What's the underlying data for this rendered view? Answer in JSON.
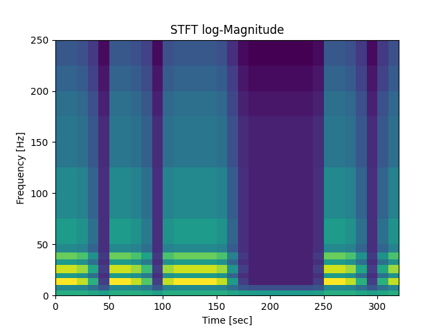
{
  "chart_data": {
    "type": "heatmap",
    "title": "STFT log-Magnitude",
    "x_label": "Time [sec]",
    "y_label": "Frequency [Hz]",
    "xlim": [
      0,
      320
    ],
    "ylim": [
      0,
      250
    ],
    "xticks": [
      0,
      50,
      100,
      150,
      200,
      250,
      300
    ],
    "yticks": [
      0,
      50,
      100,
      150,
      200,
      250
    ],
    "grid": false,
    "x_edges": [
      0,
      10,
      20,
      30,
      40,
      50,
      60,
      70,
      80,
      90,
      100,
      110,
      120,
      130,
      140,
      150,
      160,
      170,
      180,
      190,
      200,
      210,
      220,
      230,
      240,
      250,
      260,
      270,
      280,
      290,
      300,
      310,
      320
    ],
    "y_edges": [
      0,
      5,
      10,
      17,
      22,
      30,
      35,
      42,
      50,
      75,
      100,
      125,
      150,
      175,
      200,
      225,
      250
    ],
    "cells": [
      [
        6.5,
        6.5,
        6.5,
        6.3,
        6.1,
        6.5,
        6.5,
        6.5,
        6.4,
        6.1,
        6.5,
        6.5,
        6.5,
        6.5,
        6.5,
        6.5,
        6.3,
        6.1,
        6,
        6,
        6,
        6,
        6,
        6,
        6.1,
        6.5,
        6.5,
        6.5,
        6.3,
        6.1,
        6.3,
        6.5
      ],
      [
        5.5,
        5.5,
        5.4,
        4.9,
        4.2,
        5.5,
        5.5,
        5.4,
        5.1,
        4.2,
        5.4,
        5.5,
        5.5,
        5.5,
        5.5,
        5.4,
        4.8,
        4.2,
        4,
        4,
        4,
        4,
        4,
        4,
        4.2,
        5.5,
        5.5,
        5.4,
        4.9,
        4.2,
        4.9,
        5.4
      ],
      [
        9,
        9,
        8.4,
        6.6,
        3.6,
        9,
        9,
        8.4,
        7.2,
        3.6,
        8.4,
        9,
        9,
        9,
        9,
        8.4,
        6,
        3.6,
        3,
        3,
        3,
        3,
        3,
        3,
        3.6,
        9,
        9,
        8.4,
        6.6,
        3.6,
        6.6,
        8.4
      ],
      [
        6,
        6,
        5.7,
        4.8,
        3.3,
        6,
        6,
        5.7,
        5.1,
        3.3,
        5.7,
        6,
        6,
        6,
        6,
        5.7,
        4.5,
        3.3,
        3,
        3,
        3,
        3,
        3,
        3,
        3.3,
        6,
        6,
        5.7,
        4.8,
        3.3,
        4.8,
        5.7
      ],
      [
        8.5,
        8.5,
        8,
        6.3,
        3.6,
        8.5,
        8.5,
        8,
        6.9,
        3.6,
        8,
        8.5,
        8.5,
        8.5,
        8.5,
        8,
        5.8,
        3.6,
        3,
        3,
        3,
        3,
        3,
        3,
        3.6,
        8.5,
        8.5,
        8,
        6.3,
        3.6,
        6.3,
        8
      ],
      [
        6,
        6,
        5.7,
        4.8,
        3.3,
        6,
        6,
        5.7,
        5.1,
        3.3,
        5.7,
        6,
        6,
        6,
        6,
        5.7,
        4.5,
        3.3,
        3,
        3,
        3,
        3,
        3,
        3,
        3.3,
        6,
        6,
        5.7,
        4.8,
        3.3,
        4.8,
        5.7
      ],
      [
        7.5,
        7.5,
        7.1,
        5.7,
        3.5,
        7.5,
        7.5,
        7.1,
        6.2,
        3.5,
        7.1,
        7.5,
        7.5,
        7.5,
        7.5,
        7.1,
        5.3,
        3.5,
        3,
        3,
        3,
        3,
        3,
        3,
        3.5,
        7.5,
        7.5,
        7.1,
        5.7,
        3.5,
        5.7,
        7.1
      ],
      [
        5.5,
        5.5,
        5.3,
        4.5,
        3.3,
        5.5,
        5.5,
        5.3,
        4.8,
        3.3,
        5.3,
        5.5,
        5.5,
        5.5,
        5.5,
        5.3,
        4.3,
        3.3,
        3,
        3,
        3,
        3,
        3,
        3,
        3.3,
        5.5,
        5.5,
        5.3,
        4.5,
        3.3,
        4.5,
        5.3
      ],
      [
        6,
        6,
        5.7,
        4.8,
        3.3,
        6,
        6,
        5.7,
        5.1,
        3.3,
        5.7,
        6,
        6,
        6,
        6,
        5.7,
        4.5,
        3.3,
        3,
        3,
        3,
        3,
        3,
        3,
        3.3,
        6,
        6,
        5.7,
        4.8,
        3.3,
        4.8,
        5.7
      ],
      [
        5.5,
        5.5,
        5.3,
        4.5,
        3.3,
        5.5,
        5.5,
        5.3,
        4.8,
        3.3,
        5.3,
        5.5,
        5.5,
        5.5,
        5.5,
        5.3,
        4.3,
        3.3,
        3,
        3,
        3,
        3,
        3,
        3,
        3.3,
        5.5,
        5.5,
        5.3,
        4.5,
        3.3,
        4.5,
        5.3
      ],
      [
        5.5,
        5.5,
        5.3,
        4.5,
        3.3,
        5.5,
        5.5,
        5.3,
        4.8,
        3.3,
        5.3,
        5.5,
        5.5,
        5.5,
        5.5,
        5.3,
        4.3,
        3.3,
        3,
        3,
        3,
        3,
        3,
        3,
        3.3,
        5.5,
        5.5,
        5.3,
        4.5,
        3.3,
        4.5,
        5.3
      ],
      [
        5,
        5,
        4.8,
        4.2,
        3.2,
        5,
        5,
        4.8,
        4.4,
        3.2,
        4.8,
        5,
        5,
        5,
        5,
        4.8,
        4,
        3.2,
        3,
        3,
        3,
        3,
        3,
        3,
        3.2,
        5,
        5,
        4.8,
        4.2,
        3.2,
        4.2,
        4.8
      ],
      [
        5,
        5,
        4.8,
        4.2,
        3.2,
        5,
        5,
        4.8,
        4.4,
        3.2,
        4.8,
        5,
        5,
        5,
        5,
        4.8,
        4,
        3.2,
        3,
        3,
        3,
        3,
        3,
        3,
        3.2,
        5,
        5,
        4.8,
        4.2,
        3.2,
        4.2,
        4.8
      ],
      [
        4.8,
        4.8,
        4.6,
        4,
        3,
        4.8,
        4.8,
        4.6,
        4.2,
        3,
        4.6,
        4.8,
        4.8,
        4.8,
        4.8,
        4.6,
        3.8,
        3,
        2.8,
        2.8,
        2.8,
        2.8,
        2.8,
        2.8,
        3,
        4.8,
        4.8,
        4.6,
        4,
        3,
        4,
        4.6
      ],
      [
        4.5,
        4.5,
        4.3,
        3.7,
        2.8,
        4.5,
        4.5,
        4.3,
        3.9,
        2.8,
        4.3,
        4.5,
        4.5,
        4.5,
        4.5,
        4.3,
        3.6,
        2.8,
        2.6,
        2.6,
        2.6,
        2.6,
        2.6,
        2.6,
        2.8,
        4.5,
        4.5,
        4.3,
        3.7,
        2.8,
        3.7,
        4.3
      ],
      [
        4.2,
        4.2,
        4,
        3.5,
        2.6,
        4.2,
        4.2,
        4,
        3.7,
        2.6,
        4,
        4.2,
        4.2,
        4.2,
        4.2,
        4,
        3.3,
        2.6,
        2.4,
        2.4,
        2.4,
        2.4,
        2.4,
        2.4,
        2.6,
        4.2,
        4.2,
        4,
        3.5,
        2.6,
        3.5,
        4
      ]
    ]
  }
}
